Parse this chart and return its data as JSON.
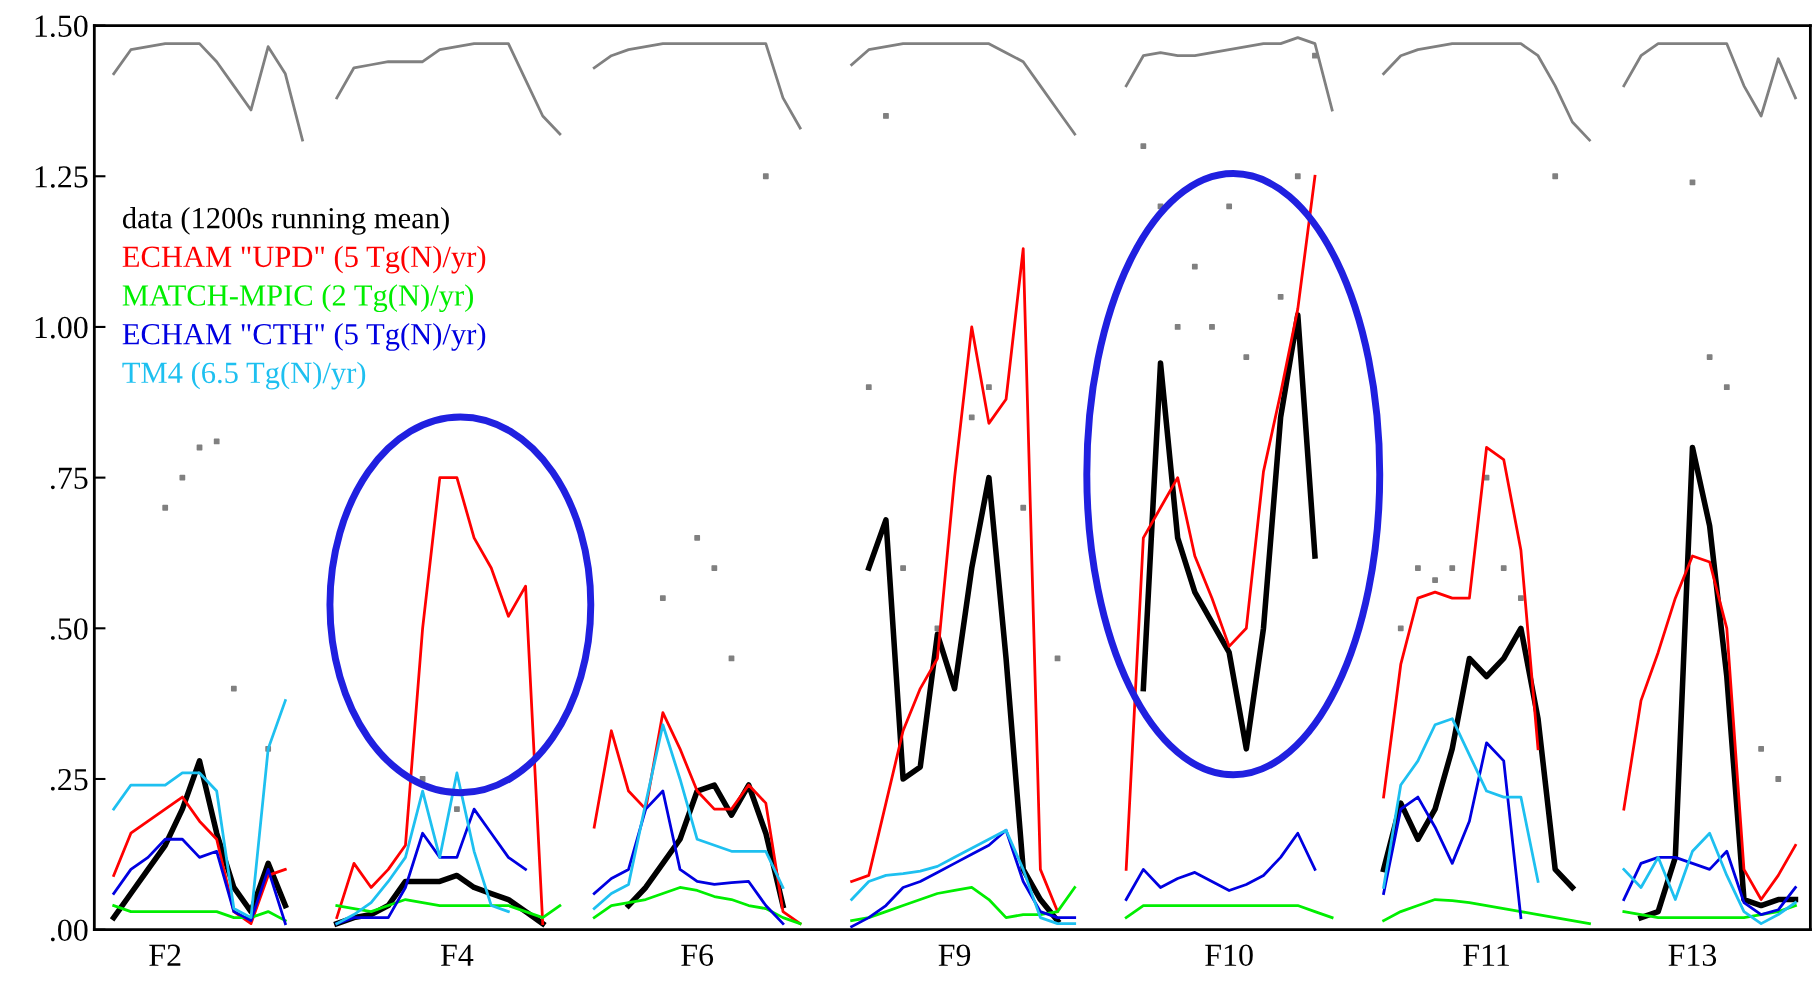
{
  "chart_data": {
    "type": "line",
    "categories": [
      null,
      null,
      null,
      null,
      "F2",
      null,
      null,
      null,
      null,
      null,
      null,
      null,
      null,
      null,
      null,
      null,
      null,
      null,
      null,
      null,
      null,
      "F4",
      null,
      null,
      null,
      null,
      null,
      null,
      null,
      null,
      null,
      null,
      null,
      null,
      null,
      "F6",
      null,
      null,
      null,
      null,
      null,
      null,
      null,
      null,
      null,
      null,
      null,
      null,
      null,
      null,
      "F9",
      null,
      null,
      null,
      null,
      null,
      null,
      null,
      null,
      null,
      null,
      null,
      null,
      null,
      null,
      null,
      "F10",
      null,
      null,
      null,
      null,
      null,
      null,
      null,
      null,
      null,
      null,
      null,
      null,
      null,
      null,
      "F11",
      null,
      null,
      null,
      null,
      null,
      null,
      null,
      null,
      null,
      null,
      null,
      "F13",
      null,
      null,
      null,
      null,
      null,
      null
    ],
    "ylim": [
      0,
      1.5
    ],
    "yticks": [
      {
        "value": 0,
        "label": ".00"
      },
      {
        "value": 0.25,
        "label": ".25"
      },
      {
        "value": 0.5,
        "label": ".50"
      },
      {
        "value": 0.75,
        "label": ".75"
      },
      {
        "value": 1.0,
        "label": "1.00"
      },
      {
        "value": 1.25,
        "label": "1.25"
      },
      {
        "value": 1.5,
        "label": "1.50"
      }
    ],
    "legend": "top left",
    "marker": "none",
    "line_style": "solid",
    "series": [
      {
        "type": "scatter",
        "marker": "square",
        "color": "#808080",
        "values": [
          null,
          null,
          null,
          null,
          0.7,
          0.75,
          0.8,
          0.81,
          0.4,
          null,
          0.3,
          null,
          null,
          null,
          null,
          null,
          null,
          null,
          null,
          0.25,
          null,
          0.2,
          null,
          null,
          null,
          null,
          null,
          null,
          null,
          null,
          null,
          null,
          null,
          0.55,
          null,
          0.65,
          0.6,
          0.45,
          null,
          1.25,
          null,
          null,
          null,
          null,
          null,
          0.9,
          1.35,
          0.6,
          null,
          0.5,
          null,
          0.85,
          0.9,
          null,
          0.7,
          null,
          0.45,
          null,
          null,
          null,
          null,
          1.3,
          1.2,
          1.0,
          1.1,
          1.0,
          1.2,
          0.95,
          null,
          1.05,
          1.25,
          1.45,
          null,
          null,
          null,
          null,
          0.5,
          0.6,
          0.58,
          0.6,
          null,
          0.75,
          0.6,
          0.55,
          null,
          1.25,
          null,
          null,
          null,
          null,
          null,
          null,
          null,
          1.24,
          0.95,
          0.9,
          null,
          0.3,
          0.25,
          null
        ]
      },
      {
        "color": "#808080",
        "values": [
          null,
          1.42,
          1.46,
          1.465,
          1.47,
          1.47,
          1.47,
          1.44,
          1.4,
          1.36,
          1.465,
          1.42,
          1.31,
          null,
          1.38,
          1.43,
          1.435,
          1.44,
          1.44,
          1.44,
          1.46,
          1.465,
          1.47,
          1.47,
          1.47,
          1.41,
          1.35,
          1.32,
          null,
          1.43,
          1.45,
          1.46,
          1.465,
          1.47,
          1.47,
          1.47,
          1.47,
          1.47,
          1.47,
          1.47,
          1.38,
          1.33,
          null,
          null,
          1.435,
          1.46,
          1.465,
          1.47,
          1.47,
          1.47,
          1.47,
          1.47,
          1.47,
          1.455,
          1.44,
          1.4,
          1.36,
          1.32,
          null,
          null,
          1.4,
          1.45,
          1.455,
          1.45,
          1.45,
          1.455,
          1.46,
          1.465,
          1.47,
          1.47,
          1.48,
          1.47,
          1.36,
          null,
          null,
          1.42,
          1.45,
          1.46,
          1.465,
          1.47,
          1.47,
          1.47,
          1.47,
          1.47,
          1.45,
          1.4,
          1.34,
          1.31,
          null,
          1.4,
          1.45,
          1.47,
          1.47,
          1.47,
          1.47,
          1.47,
          1.4,
          1.35,
          1.445,
          1.38
        ]
      },
      {
        "name": "data (1200s running mean)",
        "color": "#000000",
        "values": [
          null,
          0.02,
          0.06,
          0.1,
          0.14,
          0.2,
          0.28,
          0.16,
          0.07,
          0.03,
          0.11,
          0.04,
          null,
          null,
          0.01,
          0.02,
          0.025,
          0.04,
          0.08,
          0.08,
          0.08,
          0.09,
          0.07,
          0.06,
          0.05,
          0.03,
          0.01,
          null,
          null,
          null,
          null,
          0.04,
          0.07,
          0.11,
          0.15,
          0.23,
          0.24,
          0.19,
          0.24,
          0.16,
          0.04,
          null,
          null,
          null,
          null,
          0.6,
          0.68,
          0.25,
          0.27,
          0.49,
          0.4,
          0.6,
          0.75,
          0.45,
          0.1,
          0.05,
          0.015,
          null,
          null,
          null,
          null,
          0.4,
          0.94,
          0.65,
          0.56,
          0.51,
          0.46,
          0.3,
          0.5,
          0.85,
          1.02,
          0.62,
          null,
          null,
          null,
          0.1,
          0.21,
          0.15,
          0.2,
          0.3,
          0.45,
          0.42,
          0.45,
          0.5,
          0.35,
          0.1,
          0.07,
          null,
          null,
          null,
          0.02,
          0.03,
          0.12,
          0.8,
          0.67,
          0.42,
          0.05,
          0.04,
          0.05,
          0.05
        ]
      },
      {
        "name": "ECHAM \"UPD\" (5 Tg(N)/yr)",
        "color": "#ff0000",
        "values": [
          null,
          0.09,
          0.16,
          0.18,
          0.2,
          0.22,
          0.18,
          0.15,
          0.03,
          0.01,
          0.09,
          0.1,
          null,
          null,
          0.02,
          0.11,
          0.07,
          0.1,
          0.14,
          0.5,
          0.75,
          0.75,
          0.65,
          0.6,
          0.52,
          0.57,
          0.01,
          null,
          null,
          0.17,
          0.33,
          0.23,
          0.2,
          0.36,
          0.3,
          0.23,
          0.2,
          0.2,
          0.24,
          0.21,
          0.03,
          0.01,
          null,
          null,
          0.08,
          0.09,
          0.21,
          0.33,
          0.4,
          0.45,
          0.75,
          1.0,
          0.84,
          0.88,
          1.13,
          0.1,
          0.03,
          null,
          null,
          null,
          0.1,
          0.65,
          0.7,
          0.75,
          0.62,
          0.55,
          0.47,
          0.5,
          0.76,
          0.89,
          1.03,
          1.25,
          null,
          null,
          null,
          0.22,
          0.44,
          0.55,
          0.56,
          0.55,
          0.55,
          0.8,
          0.78,
          0.63,
          0.3,
          null,
          null,
          null,
          null,
          0.2,
          0.38,
          0.46,
          0.55,
          0.62,
          0.61,
          0.5,
          0.1,
          0.05,
          0.09,
          0.14
        ]
      },
      {
        "name": "MATCH-MPIC (2 Tg(N)/yr)",
        "color": "#00ee00",
        "values": [
          null,
          0.04,
          0.03,
          0.03,
          0.03,
          0.03,
          0.03,
          0.03,
          0.02,
          0.02,
          0.03,
          0.015,
          null,
          null,
          0.04,
          0.035,
          0.03,
          0.04,
          0.05,
          0.045,
          0.04,
          0.04,
          0.04,
          0.04,
          0.04,
          0.03,
          0.02,
          0.04,
          null,
          0.02,
          0.04,
          0.045,
          0.05,
          0.06,
          0.07,
          0.065,
          0.055,
          0.05,
          0.04,
          0.035,
          0.02,
          0.01,
          null,
          null,
          0.015,
          0.02,
          0.03,
          0.04,
          0.05,
          0.06,
          0.065,
          0.07,
          0.05,
          0.02,
          0.025,
          0.025,
          0.03,
          0.07,
          null,
          null,
          0.02,
          0.04,
          0.04,
          0.04,
          0.04,
          0.04,
          0.04,
          0.04,
          0.04,
          0.04,
          0.04,
          0.03,
          0.02,
          null,
          null,
          0.015,
          0.03,
          0.04,
          0.05,
          0.048,
          0.045,
          0.04,
          0.035,
          0.03,
          0.025,
          0.02,
          0.015,
          0.01,
          null,
          0.03,
          0.025,
          0.02,
          0.02,
          0.02,
          0.02,
          0.02,
          0.02,
          0.025,
          0.03,
          0.04
        ]
      },
      {
        "name": "ECHAM \"CTH\" (5 Tg(N)/yr)",
        "color": "#0000e0",
        "values": [
          null,
          0.06,
          0.1,
          0.12,
          0.15,
          0.15,
          0.12,
          0.13,
          0.03,
          0.015,
          0.1,
          0.01,
          null,
          null,
          0.01,
          0.02,
          0.02,
          0.02,
          0.07,
          0.16,
          0.12,
          0.12,
          0.2,
          0.16,
          0.12,
          0.1,
          null,
          null,
          null,
          0.06,
          0.085,
          0.1,
          0.2,
          0.23,
          0.1,
          0.08,
          0.075,
          0.078,
          0.08,
          0.04,
          0.01,
          null,
          null,
          null,
          0.005,
          0.02,
          0.04,
          0.07,
          0.08,
          0.095,
          0.11,
          0.125,
          0.14,
          0.165,
          0.08,
          0.03,
          0.02,
          0.02,
          null,
          null,
          0.05,
          0.1,
          0.07,
          0.085,
          0.095,
          0.08,
          0.065,
          0.075,
          0.09,
          0.12,
          0.16,
          0.1,
          null,
          null,
          null,
          0.06,
          0.2,
          0.22,
          0.17,
          0.11,
          0.18,
          0.31,
          0.28,
          0.02,
          null,
          null,
          null,
          null,
          null,
          0.05,
          0.11,
          0.12,
          0.12,
          0.11,
          0.1,
          0.13,
          0.045,
          0.025,
          0.033,
          0.07
        ]
      },
      {
        "name": "TM4 (6.5 Tg(N)/yr)",
        "color": "#1ec0f0",
        "values": [
          null,
          0.2,
          0.24,
          0.24,
          0.24,
          0.26,
          0.26,
          0.23,
          0.035,
          0.02,
          0.3,
          0.38,
          null,
          null,
          0.01,
          0.025,
          0.045,
          0.08,
          0.12,
          0.23,
          0.12,
          0.26,
          0.13,
          0.04,
          0.03,
          null,
          null,
          null,
          null,
          0.035,
          0.06,
          0.075,
          0.21,
          0.34,
          0.25,
          0.15,
          0.14,
          0.13,
          0.13,
          0.13,
          0.07,
          null,
          null,
          null,
          0.05,
          0.08,
          0.09,
          0.093,
          0.097,
          0.105,
          0.12,
          0.135,
          0.15,
          0.165,
          0.1,
          0.02,
          0.01,
          0.01,
          null,
          null,
          null,
          null,
          null,
          null,
          null,
          null,
          null,
          null,
          null,
          null,
          null,
          null,
          null,
          null,
          null,
          0.07,
          0.24,
          0.28,
          0.34,
          0.35,
          0.29,
          0.23,
          0.22,
          0.22,
          0.08,
          null,
          null,
          null,
          null,
          0.1,
          0.07,
          0.12,
          0.05,
          0.13,
          0.16,
          0.09,
          0.03,
          0.01,
          0.025,
          0.045
        ]
      }
    ]
  }
}
